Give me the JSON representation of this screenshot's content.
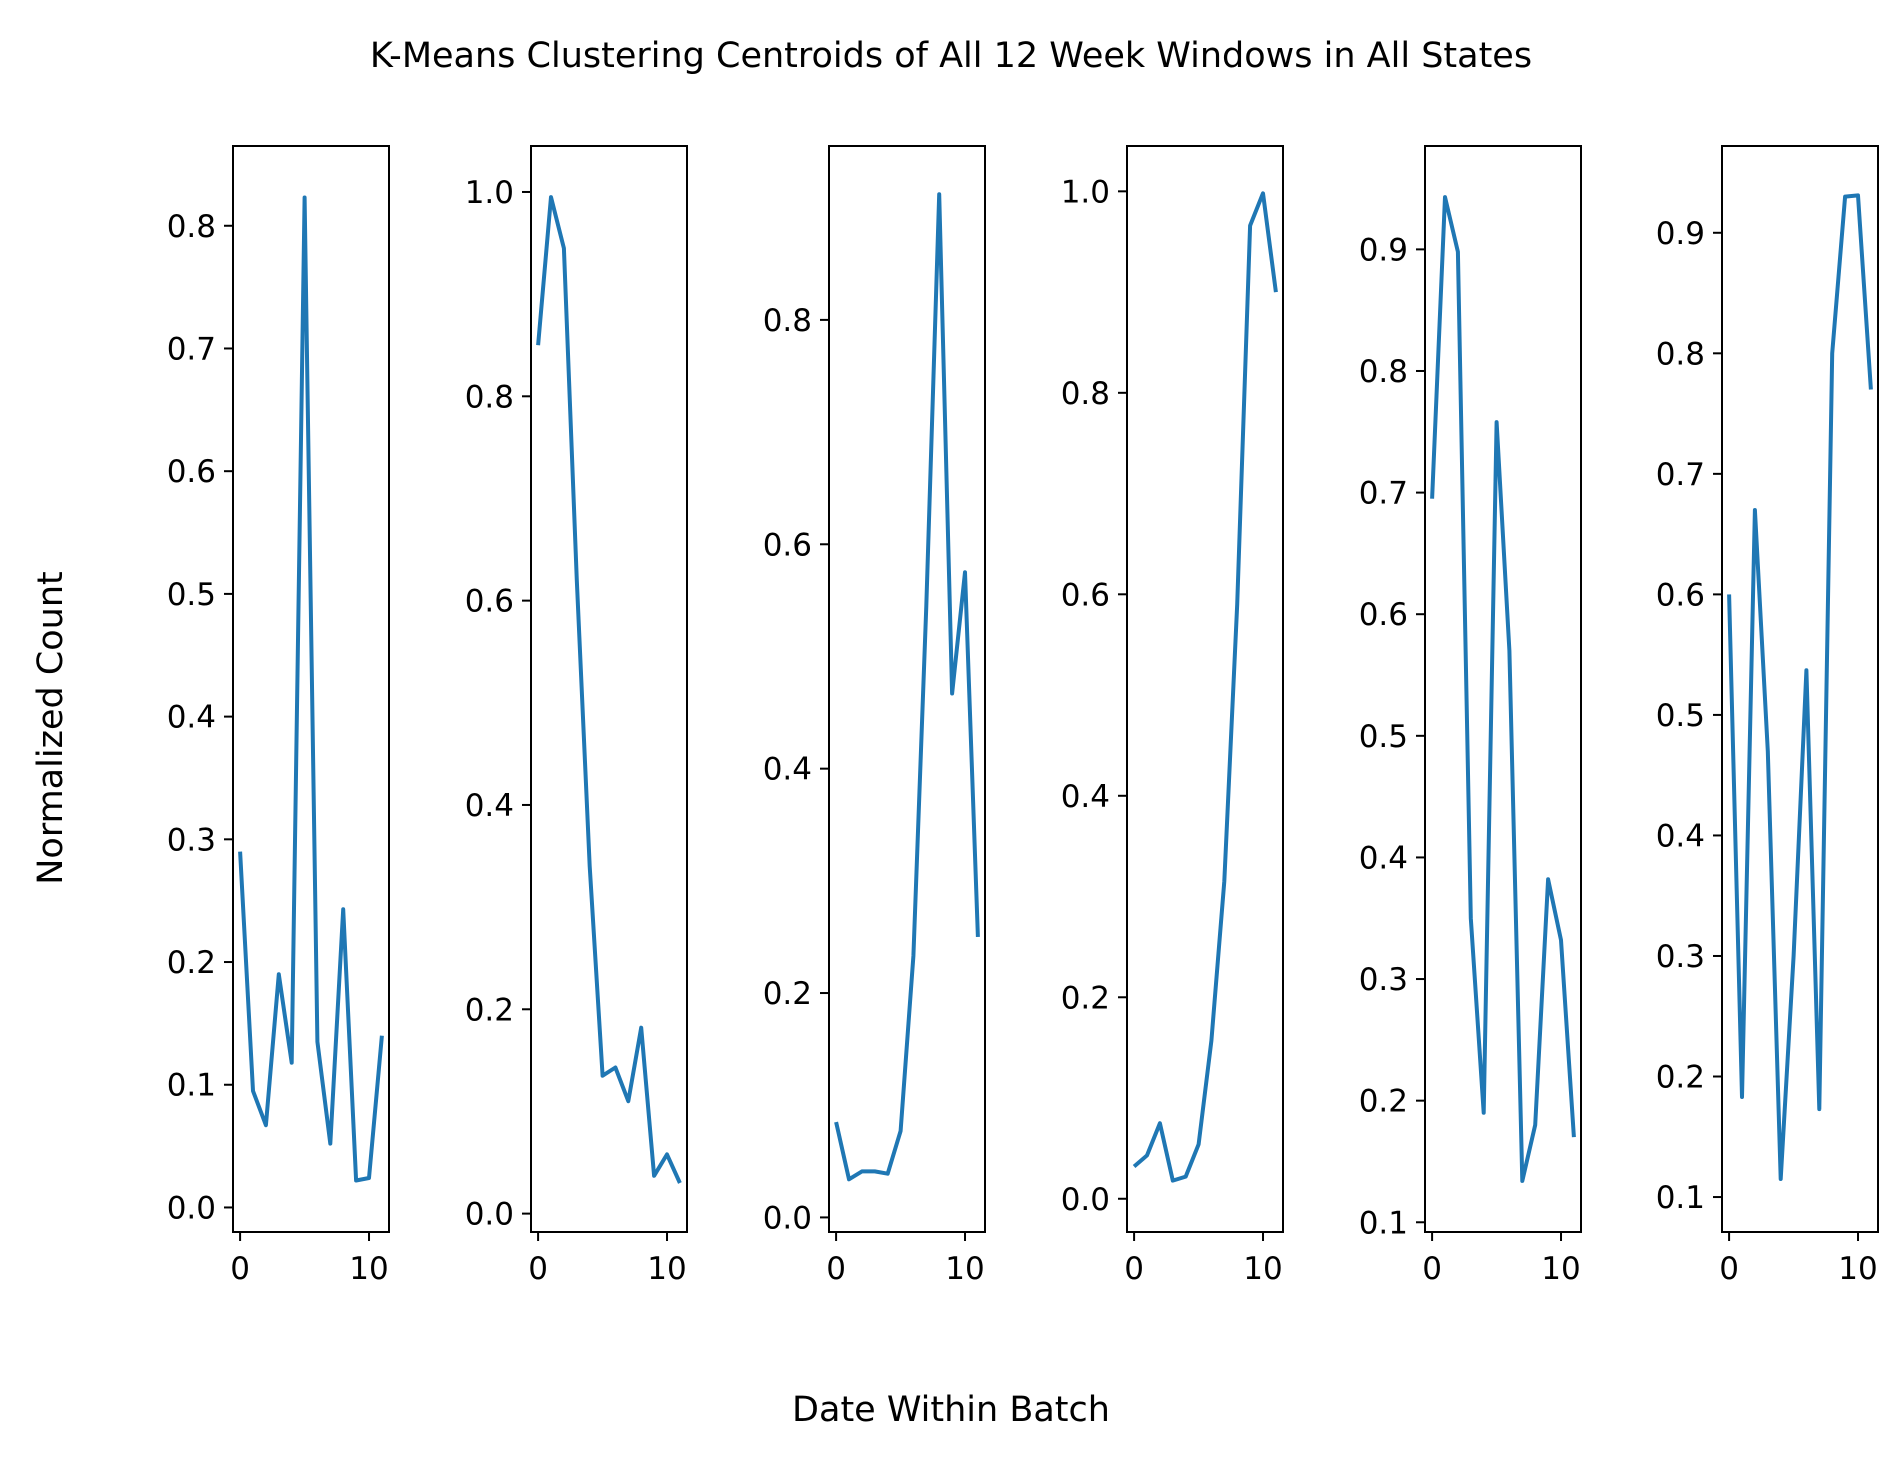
{
  "figure": {
    "title": "K-Means Clustering Centroids of All 12 Week Windows in All States",
    "xlabel": "Date Within Batch",
    "ylabel": "Normalized Count"
  },
  "style": {
    "line_color": "#1f77b4",
    "axis_color": "#000000",
    "background": "#ffffff"
  },
  "chart_data": [
    {
      "type": "line",
      "x": [
        0,
        1,
        2,
        3,
        4,
        5,
        6,
        7,
        8,
        9,
        10,
        11
      ],
      "values": [
        0.29,
        0.095,
        0.067,
        0.19,
        0.118,
        0.823,
        0.135,
        0.052,
        0.243,
        0.022,
        0.024,
        0.14
      ],
      "ylim": [
        -0.02,
        0.865
      ],
      "xlim": [
        -0.55,
        11.55
      ],
      "yticks": [
        0.0,
        0.1,
        0.2,
        0.3,
        0.4,
        0.5,
        0.6,
        0.7,
        0.8
      ],
      "ytick_labels": [
        "0.0",
        "0.1",
        "0.2",
        "0.3",
        "0.4",
        "0.5",
        "0.6",
        "0.7",
        "0.8"
      ],
      "xticks": [
        0,
        10
      ],
      "xtick_labels": [
        "0",
        "10"
      ]
    },
    {
      "type": "line",
      "x": [
        0,
        1,
        2,
        3,
        4,
        5,
        6,
        7,
        8,
        9,
        10,
        11
      ],
      "values": [
        0.85,
        0.995,
        0.945,
        0.62,
        0.34,
        0.135,
        0.143,
        0.11,
        0.182,
        0.037,
        0.058,
        0.03
      ],
      "ylim": [
        -0.018,
        1.045
      ],
      "xlim": [
        -0.55,
        11.55
      ],
      "yticks": [
        0.0,
        0.2,
        0.4,
        0.6,
        0.8,
        1.0
      ],
      "ytick_labels": [
        "0.0",
        "0.2",
        "0.4",
        "0.6",
        "0.8",
        "1.0"
      ],
      "xticks": [
        0,
        10
      ],
      "xtick_labels": [
        "0",
        "10"
      ]
    },
    {
      "type": "line",
      "x": [
        0,
        1,
        2,
        3,
        4,
        5,
        6,
        7,
        8,
        9,
        10,
        11
      ],
      "values": [
        0.085,
        0.034,
        0.041,
        0.041,
        0.039,
        0.077,
        0.233,
        0.545,
        0.912,
        0.467,
        0.575,
        0.25
      ],
      "ylim": [
        -0.013,
        0.955
      ],
      "xlim": [
        -0.55,
        11.55
      ],
      "yticks": [
        0.0,
        0.2,
        0.4,
        0.6,
        0.8
      ],
      "ytick_labels": [
        "0.0",
        "0.2",
        "0.4",
        "0.6",
        "0.8"
      ],
      "xticks": [
        0,
        10
      ],
      "xtick_labels": [
        "0",
        "10"
      ]
    },
    {
      "type": "line",
      "x": [
        0,
        1,
        2,
        3,
        4,
        5,
        6,
        7,
        8,
        9,
        10,
        11
      ],
      "values": [
        0.032,
        0.043,
        0.075,
        0.018,
        0.022,
        0.054,
        0.157,
        0.315,
        0.59,
        0.966,
        0.998,
        0.9
      ],
      "ylim": [
        -0.033,
        1.045
      ],
      "xlim": [
        -0.55,
        11.55
      ],
      "yticks": [
        0.0,
        0.2,
        0.4,
        0.6,
        0.8,
        1.0
      ],
      "ytick_labels": [
        "0.0",
        "0.2",
        "0.4",
        "0.6",
        "0.8",
        "1.0"
      ],
      "xticks": [
        0,
        10
      ],
      "xtick_labels": [
        "0",
        "10"
      ]
    },
    {
      "type": "line",
      "x": [
        0,
        1,
        2,
        3,
        4,
        5,
        6,
        7,
        8,
        9,
        10,
        11
      ],
      "values": [
        0.695,
        0.943,
        0.898,
        0.35,
        0.19,
        0.758,
        0.57,
        0.134,
        0.18,
        0.382,
        0.332,
        0.17
      ],
      "ylim": [
        0.092,
        0.985
      ],
      "xlim": [
        -0.55,
        11.55
      ],
      "yticks": [
        0.1,
        0.2,
        0.3,
        0.4,
        0.5,
        0.6,
        0.7,
        0.8,
        0.9
      ],
      "ytick_labels": [
        "0.1",
        "0.2",
        "0.3",
        "0.4",
        "0.5",
        "0.6",
        "0.7",
        "0.8",
        "0.9"
      ],
      "xticks": [
        0,
        10
      ],
      "xtick_labels": [
        "0",
        "10"
      ]
    },
    {
      "type": "line",
      "x": [
        0,
        1,
        2,
        3,
        4,
        5,
        6,
        7,
        8,
        9,
        10,
        11
      ],
      "values": [
        0.6,
        0.183,
        0.67,
        0.47,
        0.115,
        0.3,
        0.537,
        0.173,
        0.8,
        0.93,
        0.931,
        0.77
      ],
      "ylim": [
        0.071,
        0.972
      ],
      "xlim": [
        -0.55,
        11.55
      ],
      "yticks": [
        0.1,
        0.2,
        0.3,
        0.4,
        0.5,
        0.6,
        0.7,
        0.8,
        0.9
      ],
      "ytick_labels": [
        "0.1",
        "0.2",
        "0.3",
        "0.4",
        "0.5",
        "0.6",
        "0.7",
        "0.8",
        "0.9"
      ],
      "xticks": [
        0,
        10
      ],
      "xtick_labels": [
        "0",
        "10"
      ]
    }
  ]
}
